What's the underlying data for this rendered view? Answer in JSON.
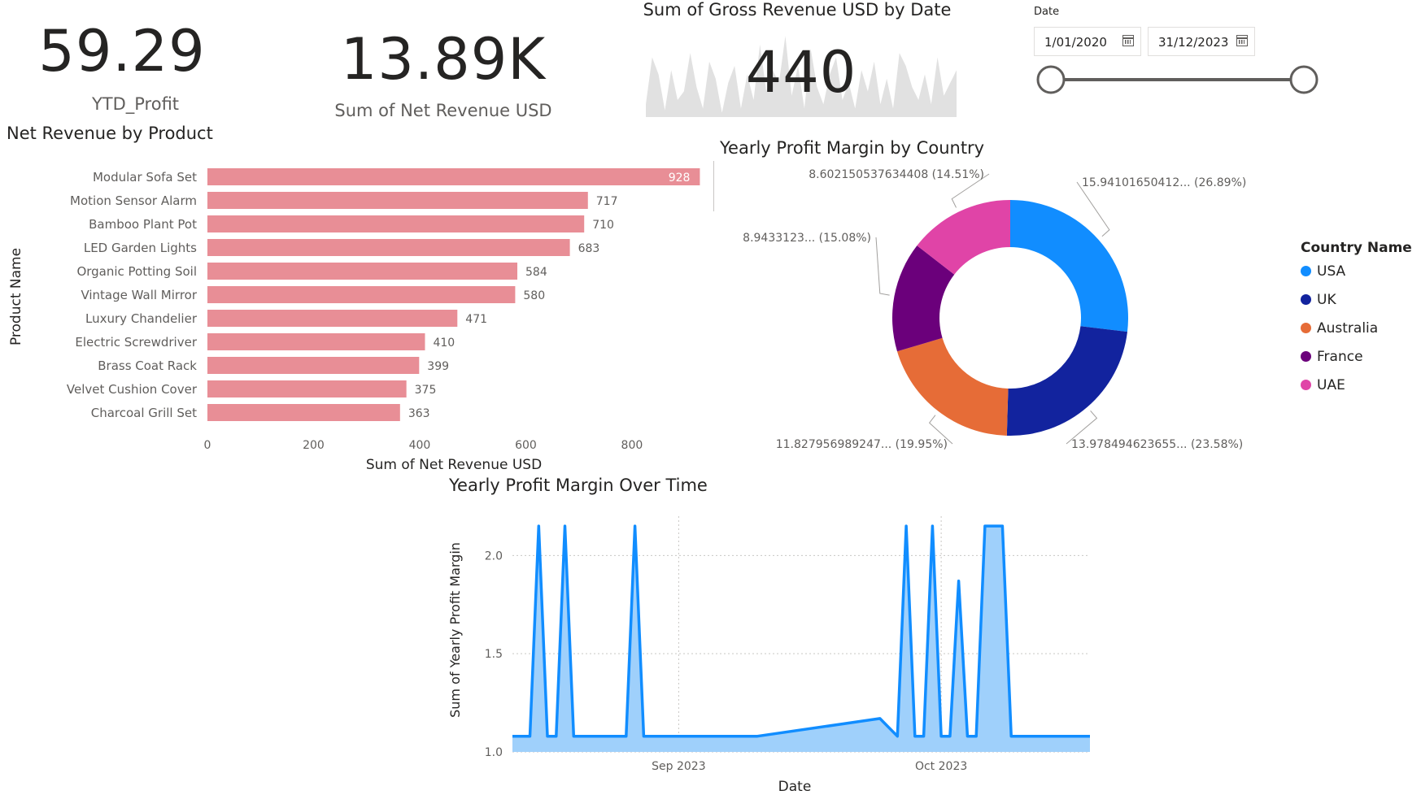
{
  "kpis": {
    "ytd_profit": {
      "value": "59.29",
      "label": "YTD_Profit"
    },
    "net_revenue": {
      "value": "13.89K",
      "label": "Sum of Net Revenue USD"
    },
    "gross_revenue": {
      "value": "440",
      "title": "Sum of Gross Revenue USD by Date"
    }
  },
  "date_slicer": {
    "label": "Date",
    "start": "1/01/2020",
    "end": "31/12/2023",
    "start_position": 0,
    "end_position": 1
  },
  "chart_data": [
    {
      "type": "bar",
      "orientation": "horizontal",
      "title": "Net Revenue by Product",
      "xlabel": "Sum of Net Revenue USD",
      "ylabel": "Product Name",
      "categories": [
        "Modular Sofa Set",
        "Motion Sensor Alarm",
        "Bamboo Plant Pot",
        "LED Garden Lights",
        "Organic Potting Soil",
        "Vintage Wall Mirror",
        "Luxury Chandelier",
        "Electric Screwdriver",
        "Brass Coat Rack",
        "Velvet Cushion Cover",
        "Charcoal Grill Set"
      ],
      "values": [
        928,
        717,
        710,
        683,
        584,
        580,
        471,
        410,
        399,
        375,
        363
      ],
      "xticks": [
        "0",
        "200",
        "400",
        "600",
        "800"
      ],
      "xlim": [
        0,
        935
      ],
      "color": "#e88e96"
    },
    {
      "type": "pie",
      "variant": "donut",
      "title": "Yearly Profit Margin by Country",
      "legend_title": "Country Name",
      "legend_position": "right",
      "slices": [
        {
          "name": "USA",
          "value": 15.94101650412,
          "label": "15.94101650412... (26.89%)",
          "color": "#118dff"
        },
        {
          "name": "UK",
          "value": 13.978494623655,
          "label": "13.978494623655... (23.58%)",
          "color": "#12239e"
        },
        {
          "name": "Australia",
          "value": 11.827956989247,
          "label": "11.827956989247... (19.95%)",
          "color": "#e66c37"
        },
        {
          "name": "France",
          "value": 8.9433123,
          "label": "8.9433123... (15.08%)",
          "color": "#6b007b"
        },
        {
          "name": "UAE",
          "value": 8.602150537634408,
          "label": "8.602150537634408 (14.51%)",
          "color": "#e044a7"
        }
      ]
    },
    {
      "type": "area",
      "title": "Yearly Profit Margin Over Time",
      "xlabel": "Date",
      "ylabel": "Sum of Yearly Profit Margin",
      "ylim": [
        1.0,
        2.2
      ],
      "yticks": [
        "1.0",
        "1.5",
        "2.0"
      ],
      "xlim": [
        "2023-08-13",
        "2023-10-18"
      ],
      "xticks": [
        {
          "date": "2023-09-01",
          "label": "Sep 2023"
        },
        {
          "date": "2023-10-01",
          "label": "Oct 2023"
        }
      ],
      "color": "#118dff",
      "fill": "#9fd0fb",
      "x": [
        "2023-08-13",
        "2023-08-15",
        "2023-08-16",
        "2023-08-17",
        "2023-08-18",
        "2023-08-19",
        "2023-08-20",
        "2023-08-21",
        "2023-08-22",
        "2023-08-26",
        "2023-08-27",
        "2023-08-28",
        "2023-09-05",
        "2023-09-10",
        "2023-09-24",
        "2023-09-26",
        "2023-09-27",
        "2023-09-28",
        "2023-09-29",
        "2023-09-30",
        "2023-10-01",
        "2023-10-02",
        "2023-10-03",
        "2023-10-04",
        "2023-10-05",
        "2023-10-06",
        "2023-10-07",
        "2023-10-08",
        "2023-10-09",
        "2023-10-18"
      ],
      "y": [
        1.08,
        1.08,
        2.15,
        1.08,
        1.08,
        2.15,
        1.08,
        1.08,
        1.08,
        1.08,
        2.15,
        1.08,
        1.08,
        1.08,
        1.17,
        1.08,
        2.15,
        1.08,
        1.08,
        2.15,
        1.08,
        1.08,
        1.87,
        1.08,
        1.08,
        2.15,
        2.15,
        2.15,
        1.08,
        1.08
      ]
    },
    {
      "type": "area",
      "role": "sparkline",
      "title": "Sum of Gross Revenue USD by Date",
      "color": "#e1e1e1",
      "values": [
        15,
        70,
        50,
        8,
        55,
        20,
        30,
        75,
        35,
        10,
        65,
        45,
        5,
        40,
        60,
        10,
        50,
        20,
        85,
        30,
        55,
        40,
        95,
        25,
        60,
        10,
        80,
        35,
        15,
        50,
        70,
        20,
        40,
        10,
        55,
        30,
        65,
        15,
        45,
        10,
        75,
        60,
        35,
        20,
        50,
        15,
        70,
        25,
        40,
        55
      ]
    }
  ]
}
